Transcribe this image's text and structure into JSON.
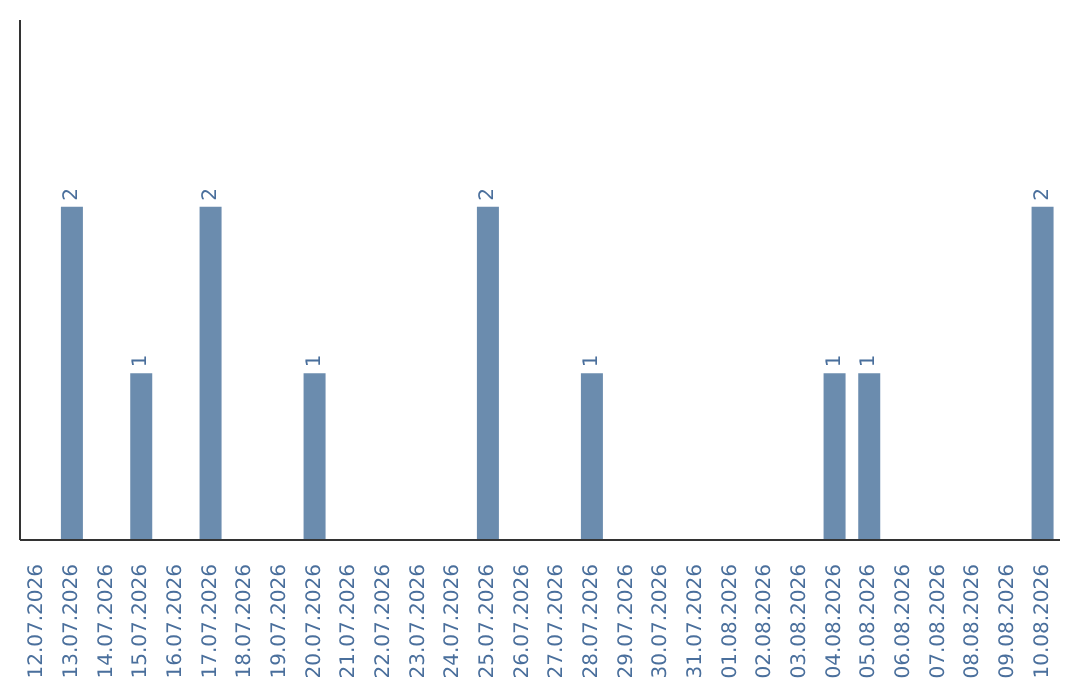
{
  "chart_data": {
    "type": "bar",
    "categories": [
      "12.07.2026",
      "13.07.2026",
      "14.07.2026",
      "15.07.2026",
      "16.07.2026",
      "17.07.2026",
      "18.07.2026",
      "19.07.2026",
      "20.07.2026",
      "21.07.2026",
      "22.07.2026",
      "23.07.2026",
      "24.07.2026",
      "25.07.2026",
      "26.07.2026",
      "27.07.2026",
      "28.07.2026",
      "29.07.2026",
      "30.07.2026",
      "31.07.2026",
      "01.08.2026",
      "02.08.2026",
      "03.08.2026",
      "04.08.2026",
      "05.08.2026",
      "06.08.2026",
      "07.08.2026",
      "08.08.2026",
      "09.08.2026",
      "10.08.2026"
    ],
    "values": [
      null,
      2,
      null,
      1,
      null,
      2,
      null,
      null,
      1,
      null,
      null,
      null,
      null,
      2,
      null,
      null,
      1,
      null,
      null,
      null,
      null,
      null,
      null,
      1,
      1,
      null,
      null,
      null,
      null,
      2
    ],
    "data_labels": true,
    "color": "#6b8cae",
    "grid": false,
    "legend": false,
    "tick_labels": "x"
  }
}
